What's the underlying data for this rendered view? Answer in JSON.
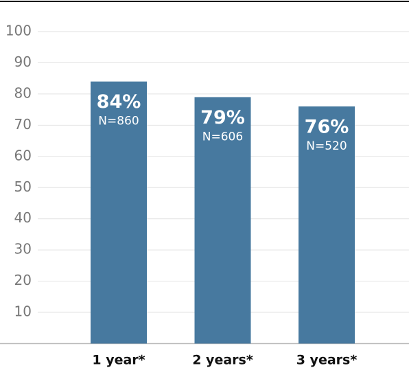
{
  "chart_data": {
    "type": "bar",
    "categories": [
      "1 year*",
      "2 years*",
      "3 years*"
    ],
    "values": [
      84,
      79,
      76
    ],
    "value_labels": [
      "84%",
      "79%",
      "76%"
    ],
    "annotations": [
      "N=860",
      "N=606",
      "N=520"
    ],
    "color": "#47799f",
    "ylim": [
      0,
      100
    ],
    "yticks": [
      10,
      20,
      30,
      40,
      50,
      60,
      70,
      80,
      90,
      100
    ],
    "grid": true
  }
}
